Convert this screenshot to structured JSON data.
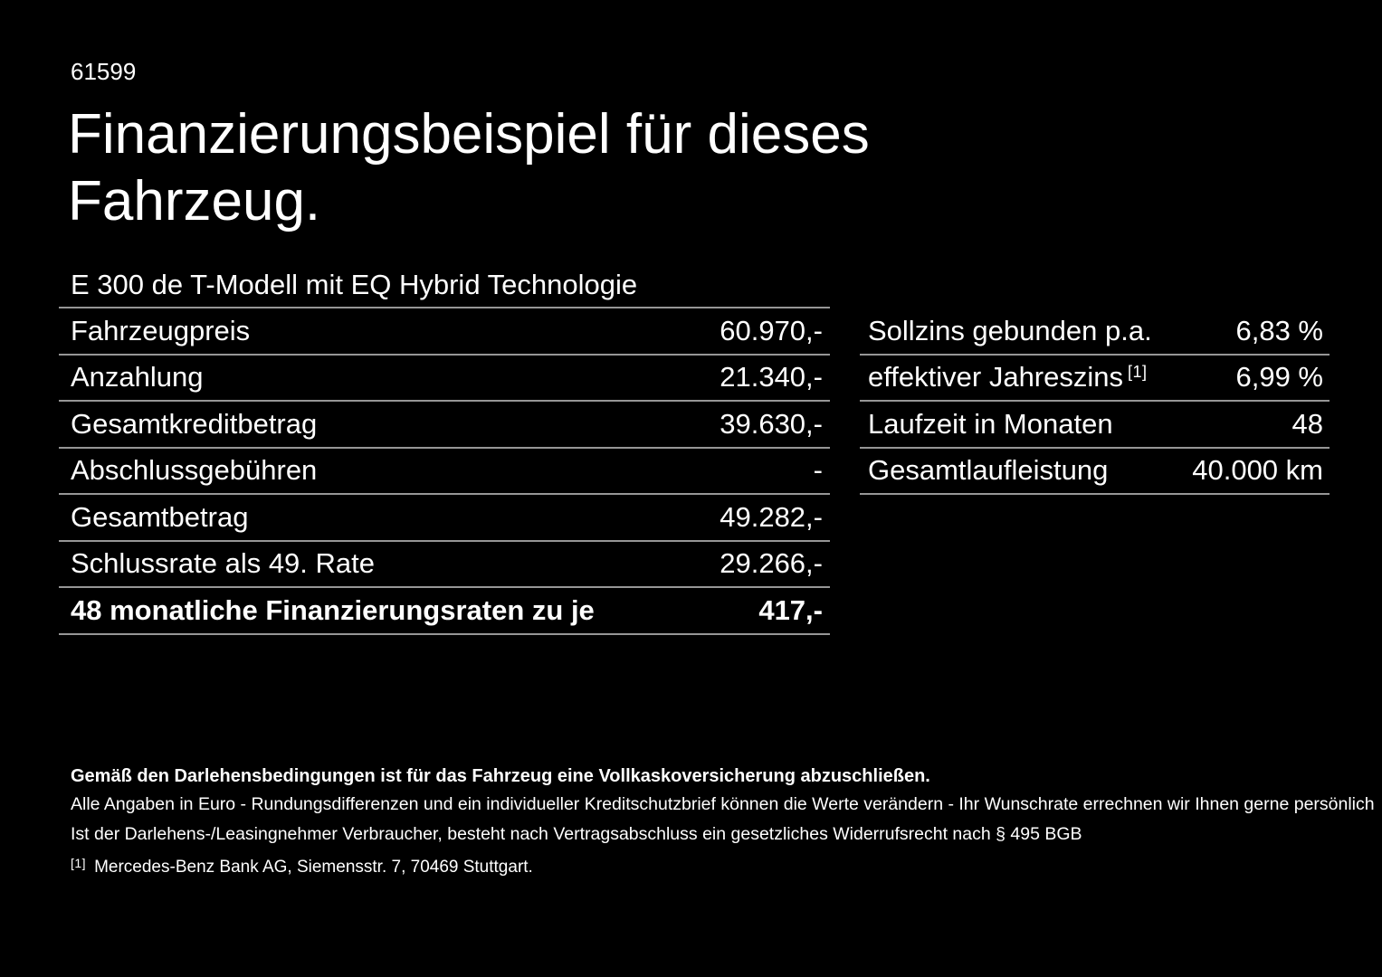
{
  "page": {
    "vehicle_id": "61599",
    "title_line1": "Finanzierungsbeispiel für dieses",
    "title_line2": "Fahrzeug.",
    "subtitle": "E 300 de T-Modell mit EQ Hybrid Technologie"
  },
  "colors": {
    "background": "#000000",
    "text": "#ffffff",
    "divider": "#969696"
  },
  "finance_table": {
    "rows": [
      {
        "label": "Fahrzeugpreis",
        "value": "60.970,-"
      },
      {
        "label": "Anzahlung",
        "value": "21.340,-"
      },
      {
        "label": "Gesamtkreditbetrag",
        "value": "39.630,-"
      },
      {
        "label": "Abschlussgebühren",
        "value": "-"
      },
      {
        "label": "Gesamtbetrag",
        "value": "49.282,-"
      },
      {
        "label": "Schlussrate als 49. Rate",
        "value": "29.266,-"
      },
      {
        "label": "48 monatliche Finanzierungsraten zu je",
        "value": "417,-"
      }
    ]
  },
  "conditions_table": {
    "rows": [
      {
        "label": "Sollzins gebunden p.a.",
        "sup": "",
        "value": "6,83 %"
      },
      {
        "label": "effektiver Jahreszins",
        "sup": "[1]",
        "value": "6,99 %"
      },
      {
        "label": "Laufzeit in Monaten",
        "sup": "",
        "value": "48"
      },
      {
        "label": "Gesamtlaufleistung",
        "sup": "",
        "value": "40.000 km"
      }
    ]
  },
  "footer": {
    "bold_note": "Gemäß den Darlehensbedingungen ist für das Fahrzeug eine Vollkaskoversicherung abzuschließen.",
    "note_line1": "Alle Angaben in Euro - Rundungsdifferenzen und ein individueller Kreditschutzbrief können die Werte verändern - Ihr Wunschrate errechnen wir Ihnen gerne persönlich",
    "note_line2": "Ist der Darlehens-/Leasingnehmer Verbraucher, besteht nach Vertragsabschluss ein gesetzliches Widerrufsrecht nach § 495 BGB",
    "footnote_marker": "[1]",
    "footnote_text": "Mercedes-Benz Bank AG, Siemensstr. 7, 70469 Stuttgart."
  }
}
